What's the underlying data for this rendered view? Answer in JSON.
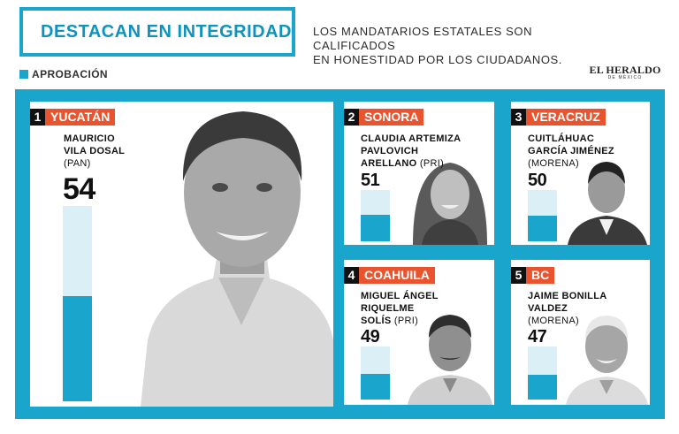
{
  "header": {
    "title": "DESTACAN EN INTEGRIDAD",
    "subtitle": "LOS MANDATARIOS ESTATALES SON CALIFICADOS\nEN HONESTIDAD POR LOS CIUDADANOS."
  },
  "legend": {
    "label": "APROBACIÓN"
  },
  "brand": {
    "name": "EL HERALDO",
    "sub": "DE MÉXICO"
  },
  "colors": {
    "accent": "#1aa5cc",
    "state_label": "#e9542f",
    "bar_bg": "#dbeff7"
  },
  "governors": [
    {
      "rank": "1",
      "state": "YUCATÁN",
      "name_lines": [
        "MAURICIO",
        "VILA DOSAL"
      ],
      "party": "(PAN)",
      "score": "54",
      "value": 54
    },
    {
      "rank": "2",
      "state": "SONORA",
      "name_lines": [
        "CLAUDIA ARTEMIZA",
        "PAVLOVICH",
        "ARELLANO"
      ],
      "party": "(PRI)",
      "score": "51",
      "value": 51
    },
    {
      "rank": "3",
      "state": "VERACRUZ",
      "name_lines": [
        "CUITLÁHUAC",
        "GARCÍA JIMÉNEZ"
      ],
      "party": "(MORENA)",
      "score": "50",
      "value": 50
    },
    {
      "rank": "4",
      "state": "COAHUILA",
      "name_lines": [
        "MIGUEL ÁNGEL",
        "RIQUELME",
        "SOLÍS"
      ],
      "party": "(PRI)",
      "score": "49",
      "value": 49
    },
    {
      "rank": "5",
      "state": "BC",
      "name_lines": [
        "JAIME BONILLA",
        "VALDEZ"
      ],
      "party": "(MORENA)",
      "score": "47",
      "value": 47
    }
  ]
}
